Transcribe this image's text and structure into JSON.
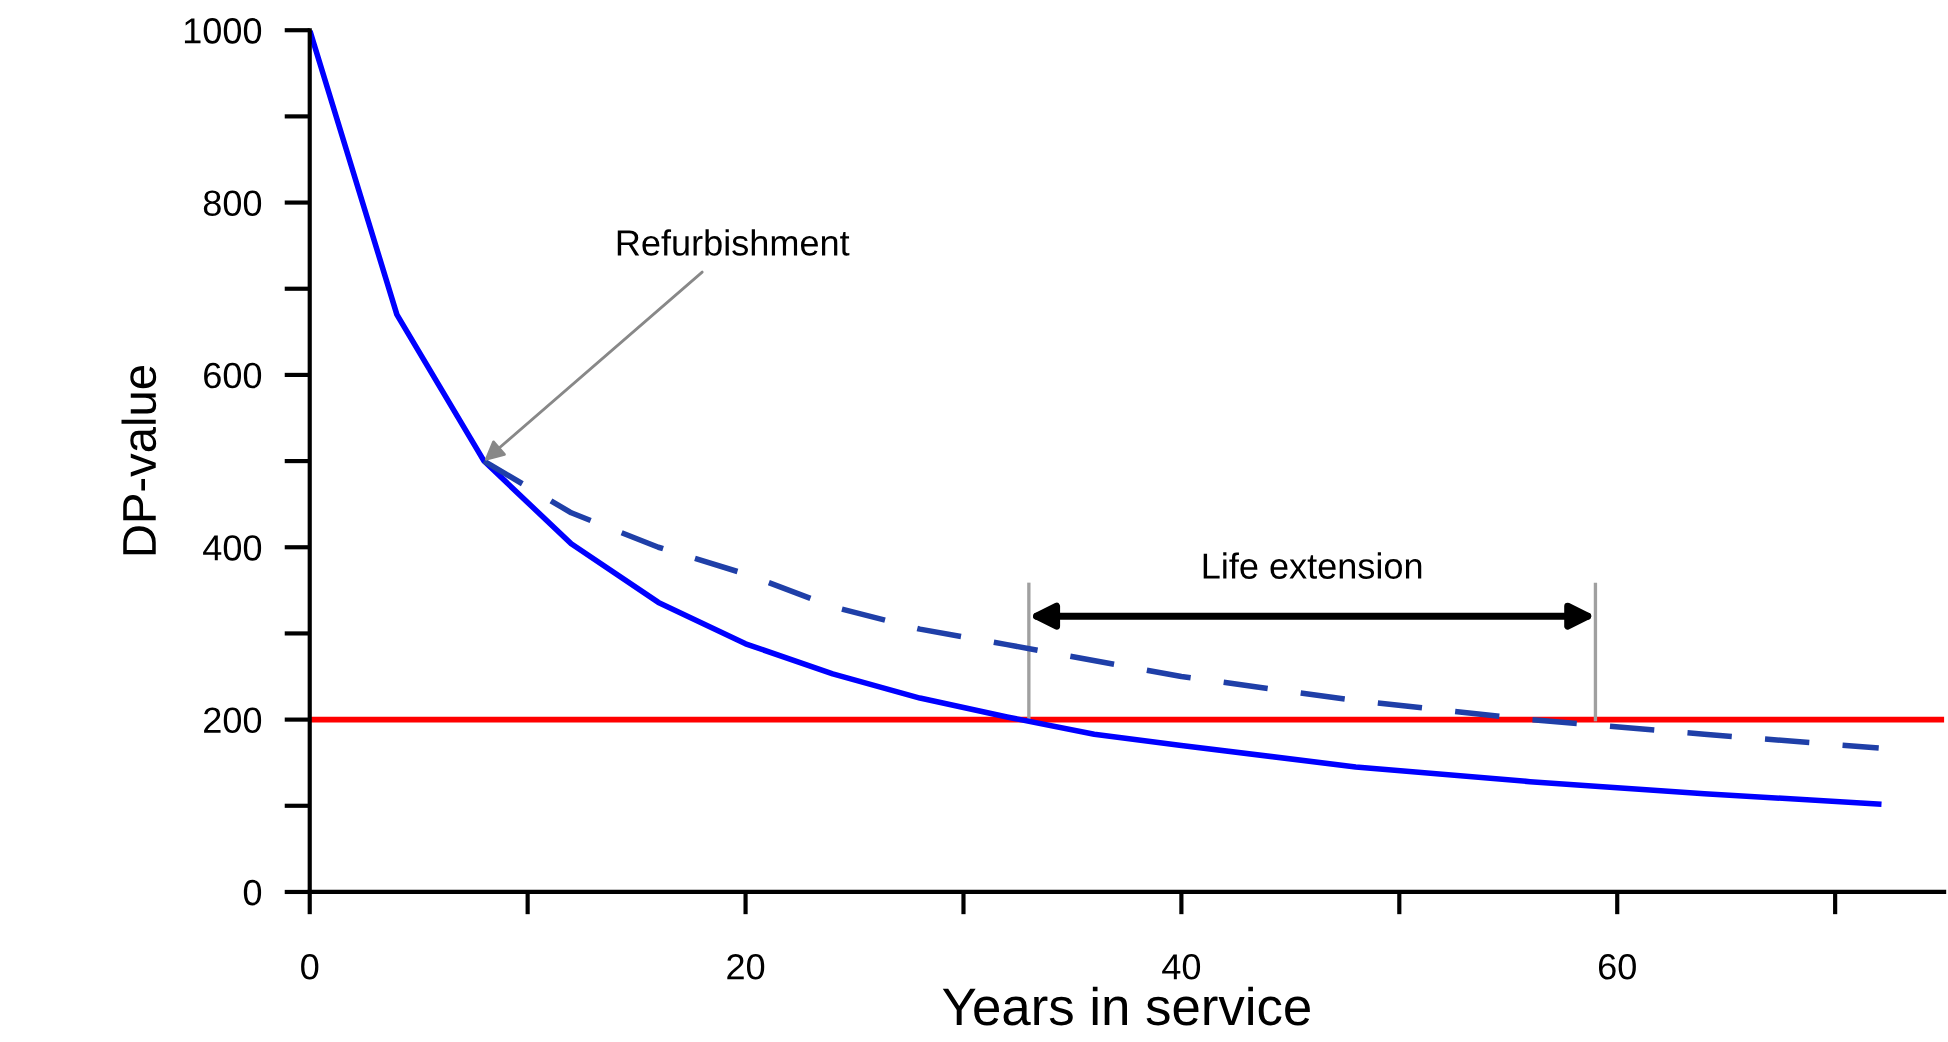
{
  "chart_data": {
    "type": "line",
    "xlabel": "Years in service",
    "ylabel": "DP-value",
    "xlim": [
      0,
      75
    ],
    "ylim": [
      0,
      1000
    ],
    "xticks": [
      0,
      {
        "value": 10,
        "label": null
      },
      20,
      {
        "value": 30,
        "label": null
      },
      40,
      {
        "value": 50,
        "label": null
      },
      60,
      {
        "value": 70,
        "label": null
      }
    ],
    "yticks": [
      0,
      {
        "value": 100,
        "label": null
      },
      200,
      {
        "value": 300,
        "label": null
      },
      400,
      {
        "value": 500,
        "label": null
      },
      600,
      {
        "value": 700,
        "label": null
      },
      800,
      {
        "value": 900,
        "label": null
      },
      1000
    ],
    "grid": false,
    "legend": false,
    "marker": "none",
    "series": [
      {
        "color": "#0000ff",
        "line_style": "solid",
        "x": [
          0,
          4,
          8,
          12,
          16,
          20,
          24,
          28,
          32,
          36,
          40,
          48,
          56,
          64,
          72
        ],
        "values": [
          1000,
          670,
          500,
          404,
          336,
          288,
          253,
          225,
          203,
          183,
          170,
          145,
          128,
          114,
          102
        ]
      },
      {
        "color": "#1f3fa8",
        "line_style": "dashed",
        "x": [
          8,
          12,
          16,
          20,
          24,
          28,
          32,
          40,
          48,
          56,
          64,
          72
        ],
        "values": [
          500,
          440,
          400,
          369,
          331,
          305,
          287,
          250,
          222,
          200,
          183,
          167
        ]
      }
    ],
    "ref_lines": [
      {
        "axis": "y",
        "value": 200,
        "color": "#ff0000"
      },
      {
        "axis": "x",
        "value": 33,
        "color": "#a0a0a0"
      },
      {
        "axis": "x",
        "value": 59,
        "color": "#a0a0a0"
      }
    ],
    "annotations": [
      {
        "text": "Refurbishment",
        "x": 8,
        "y": 500
      },
      "Life extension"
    ]
  }
}
